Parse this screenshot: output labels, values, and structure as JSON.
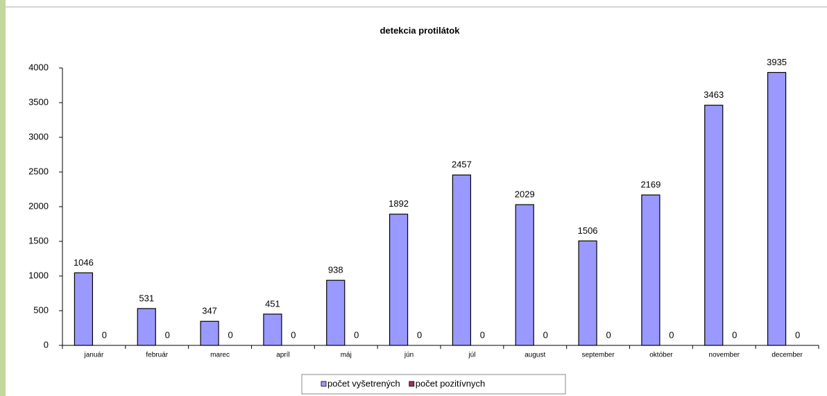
{
  "chart_data": {
    "type": "bar",
    "title": "detekcia protilátok",
    "categories": [
      "január",
      "február",
      "marec",
      "apríl",
      "máj",
      "jún",
      "júl",
      "august",
      "september",
      "október",
      "november",
      "december"
    ],
    "series": [
      {
        "name": "počet vyšetrených",
        "color": "#9999ff",
        "values": [
          1046,
          531,
          347,
          451,
          938,
          1892,
          2457,
          2029,
          1506,
          2169,
          3463,
          3935
        ]
      },
      {
        "name": "počet pozitívnych",
        "color": "#993366",
        "values": [
          0,
          0,
          0,
          0,
          0,
          0,
          0,
          0,
          0,
          0,
          0,
          0
        ]
      }
    ],
    "ylim": [
      0,
      4000
    ],
    "yticks": [
      0,
      500,
      1000,
      1500,
      2000,
      2500,
      3000,
      3500,
      4000
    ],
    "grid": false,
    "legend": "bottom"
  }
}
